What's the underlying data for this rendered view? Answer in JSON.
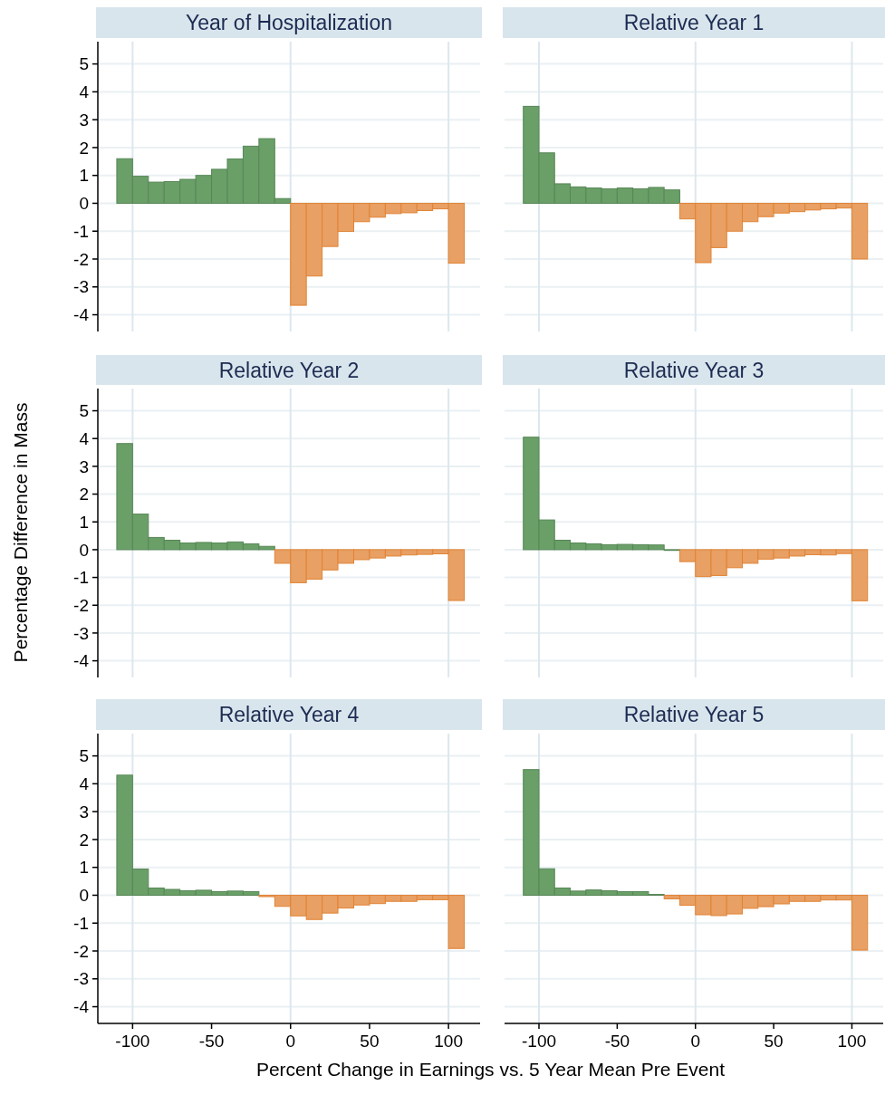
{
  "chart_data": [
    {
      "type": "histogram",
      "title": "Year of Hospitalization",
      "ylabel": "Percentage Difference in Mass",
      "bins": [
        -110,
        -100,
        -90,
        -80,
        -70,
        -60,
        -50,
        -40,
        -30,
        -20,
        -10,
        0,
        10,
        20,
        30,
        40,
        50,
        60,
        70,
        80,
        90,
        100,
        110
      ],
      "values": [
        1.6,
        0.97,
        0.76,
        0.78,
        0.86,
        1.0,
        1.22,
        1.59,
        2.05,
        2.32,
        0.17,
        -3.66,
        -2.61,
        -1.55,
        -1.01,
        -0.66,
        -0.5,
        -0.37,
        -0.34,
        -0.26,
        -0.2,
        -2.15
      ],
      "colors": [
        "#6a9f68",
        "#6a9f68",
        "#6a9f68",
        "#6a9f68",
        "#6a9f68",
        "#6a9f68",
        "#6a9f68",
        "#6a9f68",
        "#6a9f68",
        "#6a9f68",
        "#6a9f68",
        "#e8a064",
        "#e8a064",
        "#e8a064",
        "#e8a064",
        "#e8a064",
        "#e8a064",
        "#e8a064",
        "#e8a064",
        "#e8a064",
        "#e8a064",
        "#e8a064"
      ],
      "xlim": [
        -122,
        120
      ],
      "ylim": [
        -4.6,
        5.8
      ],
      "yticks": [
        -4,
        -3,
        -2,
        -1,
        0,
        1,
        2,
        3,
        4,
        5
      ],
      "grid": "y",
      "tick_labels": "y",
      "ref_lines": [
        {
          "axis": "x",
          "value": -100,
          "color": "#dce7ee"
        },
        {
          "axis": "x",
          "value": 0,
          "color": "#dce7ee"
        },
        {
          "axis": "x",
          "value": 100,
          "color": "#dce7ee"
        }
      ]
    },
    {
      "type": "histogram",
      "title": "Relative Year 1",
      "bins": [
        -110,
        -100,
        -90,
        -80,
        -70,
        -60,
        -50,
        -40,
        -30,
        -20,
        -10,
        0,
        10,
        20,
        30,
        40,
        50,
        60,
        70,
        80,
        90,
        100,
        110
      ],
      "values": [
        3.48,
        1.81,
        0.7,
        0.59,
        0.55,
        0.52,
        0.55,
        0.52,
        0.57,
        0.48,
        -0.56,
        -2.13,
        -1.59,
        -1.0,
        -0.66,
        -0.48,
        -0.35,
        -0.3,
        -0.24,
        -0.2,
        -0.17,
        -2.0
      ],
      "colors": [
        "#6a9f68",
        "#6a9f68",
        "#6a9f68",
        "#6a9f68",
        "#6a9f68",
        "#6a9f68",
        "#6a9f68",
        "#6a9f68",
        "#6a9f68",
        "#6a9f68",
        "#e8a064",
        "#e8a064",
        "#e8a064",
        "#e8a064",
        "#e8a064",
        "#e8a064",
        "#e8a064",
        "#e8a064",
        "#e8a064",
        "#e8a064",
        "#e8a064",
        "#e8a064"
      ],
      "xlim": [
        -122,
        120
      ],
      "ylim": [
        -4.6,
        5.8
      ],
      "yticks": [
        -4,
        -3,
        -2,
        -1,
        0,
        1,
        2,
        3,
        4,
        5
      ],
      "grid": "y",
      "tick_labels": false,
      "ref_lines": [
        {
          "axis": "x",
          "value": -100,
          "color": "#dce7ee"
        },
        {
          "axis": "x",
          "value": 0,
          "color": "#dce7ee"
        },
        {
          "axis": "x",
          "value": 100,
          "color": "#dce7ee"
        }
      ]
    },
    {
      "type": "histogram",
      "title": "Relative Year 2",
      "bins": [
        -110,
        -100,
        -90,
        -80,
        -70,
        -60,
        -50,
        -40,
        -30,
        -20,
        -10,
        0,
        10,
        20,
        30,
        40,
        50,
        60,
        70,
        80,
        90,
        100,
        110
      ],
      "values": [
        3.82,
        1.28,
        0.44,
        0.34,
        0.24,
        0.26,
        0.24,
        0.28,
        0.21,
        0.12,
        -0.49,
        -1.19,
        -1.06,
        -0.73,
        -0.49,
        -0.36,
        -0.3,
        -0.23,
        -0.19,
        -0.17,
        -0.15,
        -1.83
      ],
      "colors": [
        "#6a9f68",
        "#6a9f68",
        "#6a9f68",
        "#6a9f68",
        "#6a9f68",
        "#6a9f68",
        "#6a9f68",
        "#6a9f68",
        "#6a9f68",
        "#6a9f68",
        "#e8a064",
        "#e8a064",
        "#e8a064",
        "#e8a064",
        "#e8a064",
        "#e8a064",
        "#e8a064",
        "#e8a064",
        "#e8a064",
        "#e8a064",
        "#e8a064",
        "#e8a064"
      ],
      "xlim": [
        -122,
        120
      ],
      "ylim": [
        -4.6,
        5.8
      ],
      "yticks": [
        -4,
        -3,
        -2,
        -1,
        0,
        1,
        2,
        3,
        4,
        5
      ],
      "grid": "y",
      "tick_labels": "y",
      "ref_lines": [
        {
          "axis": "x",
          "value": -100,
          "color": "#dce7ee"
        },
        {
          "axis": "x",
          "value": 0,
          "color": "#dce7ee"
        },
        {
          "axis": "x",
          "value": 100,
          "color": "#dce7ee"
        }
      ]
    },
    {
      "type": "histogram",
      "title": "Relative Year 3",
      "bins": [
        -110,
        -100,
        -90,
        -80,
        -70,
        -60,
        -50,
        -40,
        -30,
        -20,
        -10,
        0,
        10,
        20,
        30,
        40,
        50,
        60,
        70,
        80,
        90,
        100,
        110
      ],
      "values": [
        4.05,
        1.07,
        0.34,
        0.24,
        0.21,
        0.18,
        0.19,
        0.18,
        0.17,
        -0.02,
        -0.43,
        -0.97,
        -0.93,
        -0.65,
        -0.49,
        -0.34,
        -0.3,
        -0.23,
        -0.18,
        -0.19,
        -0.14,
        -1.84
      ],
      "colors": [
        "#6a9f68",
        "#6a9f68",
        "#6a9f68",
        "#6a9f68",
        "#6a9f68",
        "#6a9f68",
        "#6a9f68",
        "#6a9f68",
        "#6a9f68",
        "#6a9f68",
        "#e8a064",
        "#e8a064",
        "#e8a064",
        "#e8a064",
        "#e8a064",
        "#e8a064",
        "#e8a064",
        "#e8a064",
        "#e8a064",
        "#e8a064",
        "#e8a064",
        "#e8a064"
      ],
      "xlim": [
        -122,
        120
      ],
      "ylim": [
        -4.6,
        5.8
      ],
      "yticks": [
        -4,
        -3,
        -2,
        -1,
        0,
        1,
        2,
        3,
        4,
        5
      ],
      "grid": "y",
      "tick_labels": false,
      "ref_lines": [
        {
          "axis": "x",
          "value": -100,
          "color": "#dce7ee"
        },
        {
          "axis": "x",
          "value": 0,
          "color": "#dce7ee"
        },
        {
          "axis": "x",
          "value": 100,
          "color": "#dce7ee"
        }
      ]
    },
    {
      "type": "histogram",
      "title": "Relative Year 4",
      "xlabel": "Percent Change in Earnings vs. 5 Year Mean Pre Event",
      "bins": [
        -110,
        -100,
        -90,
        -80,
        -70,
        -60,
        -50,
        -40,
        -30,
        -20,
        -10,
        0,
        10,
        20,
        30,
        40,
        50,
        60,
        70,
        80,
        90,
        100,
        110
      ],
      "values": [
        4.31,
        0.94,
        0.26,
        0.21,
        0.16,
        0.18,
        0.13,
        0.15,
        0.13,
        -0.05,
        -0.4,
        -0.74,
        -0.87,
        -0.64,
        -0.46,
        -0.35,
        -0.3,
        -0.22,
        -0.22,
        -0.16,
        -0.16,
        -1.91
      ],
      "colors": [
        "#6a9f68",
        "#6a9f68",
        "#6a9f68",
        "#6a9f68",
        "#6a9f68",
        "#6a9f68",
        "#6a9f68",
        "#6a9f68",
        "#6a9f68",
        "#e8a064",
        "#e8a064",
        "#e8a064",
        "#e8a064",
        "#e8a064",
        "#e8a064",
        "#e8a064",
        "#e8a064",
        "#e8a064",
        "#e8a064",
        "#e8a064",
        "#e8a064",
        "#e8a064"
      ],
      "xlim": [
        -122,
        120
      ],
      "xticks": [
        -100,
        -50,
        0,
        50,
        100
      ],
      "ylim": [
        -4.6,
        5.8
      ],
      "yticks": [
        -4,
        -3,
        -2,
        -1,
        0,
        1,
        2,
        3,
        4,
        5
      ],
      "grid": "y",
      "ref_lines": [
        {
          "axis": "x",
          "value": -100,
          "color": "#dce7ee"
        },
        {
          "axis": "x",
          "value": 0,
          "color": "#dce7ee"
        },
        {
          "axis": "x",
          "value": 100,
          "color": "#dce7ee"
        }
      ]
    },
    {
      "type": "histogram",
      "title": "Relative Year 5",
      "bins": [
        -110,
        -100,
        -90,
        -80,
        -70,
        -60,
        -50,
        -40,
        -30,
        -20,
        -10,
        0,
        10,
        20,
        30,
        40,
        50,
        60,
        70,
        80,
        90,
        100,
        110
      ],
      "values": [
        4.51,
        0.95,
        0.26,
        0.15,
        0.19,
        0.16,
        0.13,
        0.13,
        0.03,
        -0.13,
        -0.36,
        -0.7,
        -0.73,
        -0.67,
        -0.47,
        -0.41,
        -0.31,
        -0.22,
        -0.22,
        -0.17,
        -0.17,
        -1.97
      ],
      "colors": [
        "#6a9f68",
        "#6a9f68",
        "#6a9f68",
        "#6a9f68",
        "#6a9f68",
        "#6a9f68",
        "#6a9f68",
        "#6a9f68",
        "#6a9f68",
        "#e8a064",
        "#e8a064",
        "#e8a064",
        "#e8a064",
        "#e8a064",
        "#e8a064",
        "#e8a064",
        "#e8a064",
        "#e8a064",
        "#e8a064",
        "#e8a064",
        "#e8a064",
        "#e8a064"
      ],
      "xlim": [
        -122,
        120
      ],
      "xticks": [
        -100,
        -50,
        0,
        50,
        100
      ],
      "ylim": [
        -4.6,
        5.8
      ],
      "yticks": [
        -4,
        -3,
        -2,
        -1,
        0,
        1,
        2,
        3,
        4,
        5
      ],
      "grid": "y",
      "tick_labels": "x",
      "ref_lines": [
        {
          "axis": "x",
          "value": -100,
          "color": "#dce7ee"
        },
        {
          "axis": "x",
          "value": 0,
          "color": "#dce7ee"
        },
        {
          "axis": "x",
          "value": 100,
          "color": "#dce7ee"
        }
      ]
    }
  ]
}
